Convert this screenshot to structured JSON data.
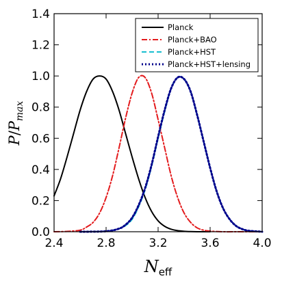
{
  "chart_data": {
    "type": "line",
    "xlabel": "N_eff",
    "ylabel": "P/P_max",
    "xlim": [
      2.4,
      4.0
    ],
    "ylim": [
      0.0,
      1.4
    ],
    "x_ticks": [
      "2.4",
      "2.8",
      "3.2",
      "3.6",
      "4.0"
    ],
    "y_ticks": [
      "0.0",
      "0.2",
      "0.4",
      "0.6",
      "0.8",
      "1.0",
      "1.2",
      "1.4"
    ],
    "grid": false,
    "legend_position": "top-right",
    "series": [
      {
        "name": "Planck",
        "color": "#000000",
        "style": "solid",
        "x": [
          2.4,
          2.45,
          2.5,
          2.55,
          2.6,
          2.65,
          2.7,
          2.75,
          2.8,
          2.85,
          2.9,
          2.95,
          3.0,
          3.05,
          3.1,
          3.15,
          3.2,
          3.25,
          3.3,
          3.35,
          3.4,
          3.45,
          3.5,
          3.55,
          3.6
        ],
        "y": [
          0.23,
          0.34,
          0.48,
          0.63,
          0.78,
          0.9,
          0.98,
          1.0,
          0.98,
          0.9,
          0.78,
          0.63,
          0.48,
          0.34,
          0.22,
          0.13,
          0.07,
          0.035,
          0.016,
          0.007,
          0.003,
          0.001,
          0.0,
          0.0,
          0.0
        ]
      },
      {
        "name": "Planck+BAO",
        "color": "#e31a1c",
        "style": "dashdot",
        "x": [
          2.4,
          2.5,
          2.6,
          2.65,
          2.7,
          2.75,
          2.8,
          2.85,
          2.9,
          2.95,
          3.0,
          3.05,
          3.1,
          3.15,
          3.2,
          3.25,
          3.3,
          3.35,
          3.4,
          3.45,
          3.5,
          3.55,
          3.6,
          3.7,
          3.8,
          4.0
        ],
        "y": [
          0.0,
          0.002,
          0.01,
          0.03,
          0.06,
          0.12,
          0.22,
          0.36,
          0.54,
          0.73,
          0.89,
          0.99,
          0.99,
          0.89,
          0.72,
          0.54,
          0.36,
          0.22,
          0.12,
          0.06,
          0.025,
          0.01,
          0.004,
          0.0,
          0.0,
          0.0
        ]
      },
      {
        "name": "Planck+HST",
        "color": "#17becf",
        "style": "dashed",
        "x": [
          2.6,
          2.8,
          2.9,
          2.95,
          3.0,
          3.05,
          3.1,
          3.15,
          3.2,
          3.25,
          3.3,
          3.35,
          3.4,
          3.45,
          3.5,
          3.55,
          3.6,
          3.65,
          3.7,
          3.75,
          3.8,
          3.85,
          3.9,
          4.0
        ],
        "y": [
          0.0,
          0.003,
          0.02,
          0.04,
          0.08,
          0.16,
          0.27,
          0.42,
          0.6,
          0.77,
          0.92,
          0.99,
          0.98,
          0.9,
          0.75,
          0.58,
          0.41,
          0.26,
          0.15,
          0.08,
          0.037,
          0.016,
          0.006,
          0.0
        ]
      },
      {
        "name": "Planck+HST+lensing",
        "color": "#00008b",
        "style": "dotted",
        "x": [
          2.6,
          2.8,
          2.9,
          2.95,
          3.0,
          3.05,
          3.1,
          3.15,
          3.2,
          3.25,
          3.3,
          3.35,
          3.4,
          3.45,
          3.5,
          3.55,
          3.6,
          3.65,
          3.7,
          3.75,
          3.8,
          3.85,
          3.9,
          4.0
        ],
        "y": [
          0.0,
          0.003,
          0.02,
          0.045,
          0.09,
          0.17,
          0.28,
          0.43,
          0.61,
          0.78,
          0.92,
          0.99,
          0.98,
          0.9,
          0.75,
          0.58,
          0.41,
          0.26,
          0.15,
          0.08,
          0.037,
          0.016,
          0.006,
          0.0
        ]
      }
    ]
  }
}
